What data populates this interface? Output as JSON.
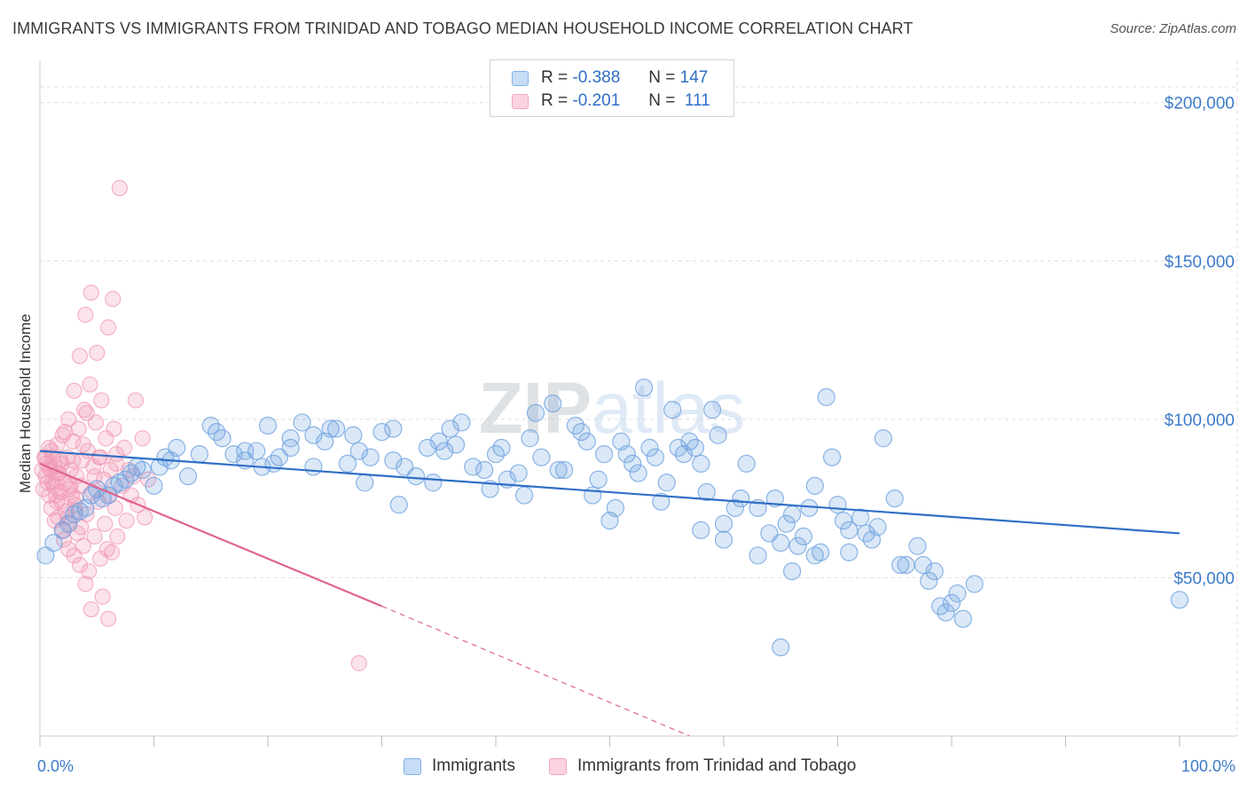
{
  "title": "IMMIGRANTS VS IMMIGRANTS FROM TRINIDAD AND TOBAGO MEDIAN HOUSEHOLD INCOME CORRELATION CHART",
  "source": "Source: ZipAtlas.com",
  "watermark": "ZIPatlas",
  "legend": {
    "rows": [
      {
        "r_label": "R =",
        "r_value": "-0.388",
        "n_label": "N =",
        "n_value": "147",
        "color": "#7fb0e8"
      },
      {
        "r_label": "R =",
        "r_value": "-0.201",
        "n_label": "N =",
        "n_value": "111",
        "color": "#f4a5bd"
      }
    ]
  },
  "bottom_legend": {
    "immigrants": "Immigrants",
    "trinidad": "Immigrants from Trinidad and Tobago"
  },
  "colors": {
    "blue": "#6fa3e0",
    "blue_line": "#2f6fc6",
    "pink": "#f29bb7",
    "pink_line": "#e0648f",
    "tick_text": "#3d7cc9",
    "grid": "#dddddd"
  },
  "chart_data": {
    "type": "scatter",
    "title": "IMMIGRANTS VS IMMIGRANTS FROM TRINIDAD AND TOBAGO MEDIAN HOUSEHOLD INCOME CORRELATION CHART",
    "xlabel": "",
    "ylabel": "Median Household Income",
    "xlim": [
      0,
      100
    ],
    "ylim": [
      0,
      210000
    ],
    "x_tick_labels": [
      "0.0%",
      "100.0%"
    ],
    "y_ticks": [
      50000,
      100000,
      150000,
      200000
    ],
    "y_tick_labels": [
      "$50,000",
      "$100,000",
      "$150,000",
      "$200,000"
    ],
    "grid": true,
    "legend_position": "top-center",
    "series": [
      {
        "name": "Immigrants",
        "r": -0.388,
        "n": 147,
        "trend": {
          "x": [
            0,
            100
          ],
          "y": [
            90000,
            64000
          ]
        },
        "points": [
          [
            0.5,
            57000
          ],
          [
            1.2,
            61000
          ],
          [
            2,
            65000
          ],
          [
            2.5,
            67000
          ],
          [
            3,
            70000
          ],
          [
            3.5,
            71000
          ],
          [
            4,
            72000
          ],
          [
            4.5,
            76000
          ],
          [
            5,
            78000
          ],
          [
            5.5,
            75000
          ],
          [
            6,
            76000
          ],
          [
            6.5,
            79000
          ],
          [
            7,
            80000
          ],
          [
            7.5,
            81000
          ],
          [
            8,
            83000
          ],
          [
            8.5,
            85000
          ],
          [
            9,
            84000
          ],
          [
            10,
            79000
          ],
          [
            10.5,
            85000
          ],
          [
            11,
            88000
          ],
          [
            11.5,
            87000
          ],
          [
            12,
            91000
          ],
          [
            13,
            82000
          ],
          [
            14,
            89000
          ],
          [
            15,
            98000
          ],
          [
            15.5,
            96000
          ],
          [
            16,
            94000
          ],
          [
            17,
            89000
          ],
          [
            18,
            90000
          ],
          [
            18,
            87000
          ],
          [
            19,
            90000
          ],
          [
            19.5,
            85000
          ],
          [
            20,
            98000
          ],
          [
            20.5,
            86000
          ],
          [
            21,
            88000
          ],
          [
            22,
            91000
          ],
          [
            22,
            94000
          ],
          [
            23,
            99000
          ],
          [
            24,
            95000
          ],
          [
            24,
            85000
          ],
          [
            25,
            93000
          ],
          [
            25.5,
            97000
          ],
          [
            26,
            97000
          ],
          [
            27,
            86000
          ],
          [
            27.5,
            95000
          ],
          [
            28,
            90000
          ],
          [
            28.5,
            80000
          ],
          [
            29,
            88000
          ],
          [
            30,
            96000
          ],
          [
            31,
            97000
          ],
          [
            31,
            87000
          ],
          [
            31.5,
            73000
          ],
          [
            32,
            85000
          ],
          [
            33,
            82000
          ],
          [
            34,
            91000
          ],
          [
            34.5,
            80000
          ],
          [
            35,
            93000
          ],
          [
            35.5,
            90000
          ],
          [
            36,
            97000
          ],
          [
            36.5,
            92000
          ],
          [
            37,
            99000
          ],
          [
            38,
            85000
          ],
          [
            39,
            84000
          ],
          [
            39.5,
            78000
          ],
          [
            40,
            89000
          ],
          [
            40.5,
            91000
          ],
          [
            41,
            81000
          ],
          [
            42,
            83000
          ],
          [
            42.5,
            76000
          ],
          [
            43,
            94000
          ],
          [
            43.5,
            102000
          ],
          [
            44,
            88000
          ],
          [
            45,
            105000
          ],
          [
            45.5,
            84000
          ],
          [
            46,
            84000
          ],
          [
            47,
            98000
          ],
          [
            47.5,
            96000
          ],
          [
            48,
            93000
          ],
          [
            48.5,
            76000
          ],
          [
            49,
            81000
          ],
          [
            49.5,
            89000
          ],
          [
            50,
            68000
          ],
          [
            50.5,
            72000
          ],
          [
            51,
            93000
          ],
          [
            51.5,
            89000
          ],
          [
            52,
            86000
          ],
          [
            52.5,
            83000
          ],
          [
            53,
            110000
          ],
          [
            53.5,
            91000
          ],
          [
            54,
            88000
          ],
          [
            54.5,
            74000
          ],
          [
            55,
            80000
          ],
          [
            55.5,
            103000
          ],
          [
            56,
            91000
          ],
          [
            56.5,
            89000
          ],
          [
            57,
            93000
          ],
          [
            57.5,
            91000
          ],
          [
            58,
            86000
          ],
          [
            58.5,
            77000
          ],
          [
            59,
            103000
          ],
          [
            59.5,
            95000
          ],
          [
            60,
            67000
          ],
          [
            61,
            72000
          ],
          [
            61.5,
            75000
          ],
          [
            62,
            86000
          ],
          [
            63,
            72000
          ],
          [
            63,
            57000
          ],
          [
            64,
            64000
          ],
          [
            64.5,
            75000
          ],
          [
            65,
            61000
          ],
          [
            65.5,
            67000
          ],
          [
            66,
            70000
          ],
          [
            66.5,
            60000
          ],
          [
            67,
            63000
          ],
          [
            67.5,
            72000
          ],
          [
            68,
            79000
          ],
          [
            68.5,
            58000
          ],
          [
            69,
            107000
          ],
          [
            69.5,
            88000
          ],
          [
            70,
            73000
          ],
          [
            70.5,
            68000
          ],
          [
            71,
            65000
          ],
          [
            72,
            69000
          ],
          [
            72.5,
            64000
          ],
          [
            73,
            62000
          ],
          [
            73.5,
            66000
          ],
          [
            74,
            94000
          ],
          [
            75,
            75000
          ],
          [
            75.5,
            54000
          ],
          [
            76,
            54000
          ],
          [
            77,
            60000
          ],
          [
            77.5,
            54000
          ],
          [
            78,
            49000
          ],
          [
            78.5,
            52000
          ],
          [
            79,
            41000
          ],
          [
            79.5,
            39000
          ],
          [
            80,
            42000
          ],
          [
            80.5,
            45000
          ],
          [
            81,
            37000
          ],
          [
            82,
            48000
          ],
          [
            65,
            28000
          ],
          [
            68,
            57000
          ],
          [
            71,
            58000
          ],
          [
            66,
            52000
          ],
          [
            60,
            62000
          ],
          [
            58,
            65000
          ],
          [
            100,
            43000
          ]
        ]
      },
      {
        "name": "Immigrants from Trinidad and Tobago",
        "r": -0.201,
        "n": 111,
        "trend": {
          "x": [
            0,
            30
          ],
          "y": [
            86000,
            41000
          ]
        },
        "trend_dashed": {
          "x": [
            30,
            57
          ],
          "y": [
            41000,
            0
          ]
        },
        "points": [
          [
            0.2,
            84000
          ],
          [
            0.3,
            78000
          ],
          [
            0.4,
            88000
          ],
          [
            0.5,
            82000
          ],
          [
            0.6,
            86000
          ],
          [
            0.7,
            80000
          ],
          [
            0.8,
            76000
          ],
          [
            0.9,
            84000
          ],
          [
            1,
            90000
          ],
          [
            1,
            72000
          ],
          [
            1.1,
            88000
          ],
          [
            1.2,
            79000
          ],
          [
            1.3,
            85000
          ],
          [
            1.4,
            81000
          ],
          [
            1.5,
            74000
          ],
          [
            1.5,
            92000
          ],
          [
            1.6,
            69000
          ],
          [
            1.7,
            83000
          ],
          [
            1.8,
            77000
          ],
          [
            1.9,
            86000
          ],
          [
            2,
            65000
          ],
          [
            2,
            95000
          ],
          [
            2.1,
            62000
          ],
          [
            2.2,
            80000
          ],
          [
            2.3,
            71000
          ],
          [
            2.4,
            88000
          ],
          [
            2.5,
            59000
          ],
          [
            2.5,
            100000
          ],
          [
            2.6,
            67000
          ],
          [
            2.7,
            84000
          ],
          [
            2.8,
            76000
          ],
          [
            2.9,
            93000
          ],
          [
            3,
            57000
          ],
          [
            3,
            109000
          ],
          [
            3.1,
            73000
          ],
          [
            3.2,
            82000
          ],
          [
            3.3,
            64000
          ],
          [
            3.4,
            97000
          ],
          [
            3.5,
            54000
          ],
          [
            3.5,
            120000
          ],
          [
            3.6,
            79000
          ],
          [
            3.7,
            87000
          ],
          [
            3.8,
            60000
          ],
          [
            3.9,
            103000
          ],
          [
            4,
            48000
          ],
          [
            4,
            133000
          ],
          [
            4.1,
            70000
          ],
          [
            4.2,
            90000
          ],
          [
            4.3,
            52000
          ],
          [
            4.4,
            111000
          ],
          [
            4.5,
            40000
          ],
          [
            4.5,
            140000
          ],
          [
            4.6,
            77000
          ],
          [
            4.7,
            85000
          ],
          [
            4.8,
            63000
          ],
          [
            4.9,
            99000
          ],
          [
            5,
            121000
          ],
          [
            5.1,
            74000
          ],
          [
            5.2,
            88000
          ],
          [
            5.3,
            56000
          ],
          [
            5.4,
            106000
          ],
          [
            5.5,
            44000
          ],
          [
            5.6,
            81000
          ],
          [
            5.7,
            67000
          ],
          [
            5.8,
            94000
          ],
          [
            5.9,
            59000
          ],
          [
            6,
            37000
          ],
          [
            6,
            129000
          ],
          [
            6.1,
            76000
          ],
          [
            6.2,
            84000
          ],
          [
            6.3,
            58000
          ],
          [
            6.4,
            138000
          ],
          [
            6.5,
            97000
          ],
          [
            6.6,
            72000
          ],
          [
            6.7,
            86000
          ],
          [
            6.8,
            63000
          ],
          [
            7,
            173000
          ],
          [
            7.2,
            79000
          ],
          [
            7.4,
            91000
          ],
          [
            7.6,
            68000
          ],
          [
            7.8,
            84000
          ],
          [
            8,
            76000
          ],
          [
            8.2,
            82000
          ],
          [
            8.4,
            106000
          ],
          [
            8.6,
            73000
          ],
          [
            9,
            94000
          ],
          [
            9.2,
            69000
          ],
          [
            9.5,
            81000
          ],
          [
            2.2,
            96000
          ],
          [
            2.6,
            78000
          ],
          [
            3.1,
            71000
          ],
          [
            1.3,
            68000
          ],
          [
            0.8,
            91000
          ],
          [
            1.6,
            83000
          ],
          [
            2.9,
            87000
          ],
          [
            3.6,
            66000
          ],
          [
            4.1,
            102000
          ],
          [
            1.9,
            74000
          ],
          [
            0.5,
            88000
          ],
          [
            1.1,
            80000
          ],
          [
            5.3,
            88000
          ],
          [
            3.2,
            75000
          ],
          [
            2.4,
            69000
          ],
          [
            4.8,
            82000
          ],
          [
            6.7,
            89000
          ],
          [
            1.4,
            76000
          ],
          [
            0.9,
            85000
          ],
          [
            2.7,
            79000
          ],
          [
            3.8,
            92000
          ],
          [
            28,
            23000
          ],
          [
            1.8,
            87000
          ]
        ]
      }
    ]
  }
}
